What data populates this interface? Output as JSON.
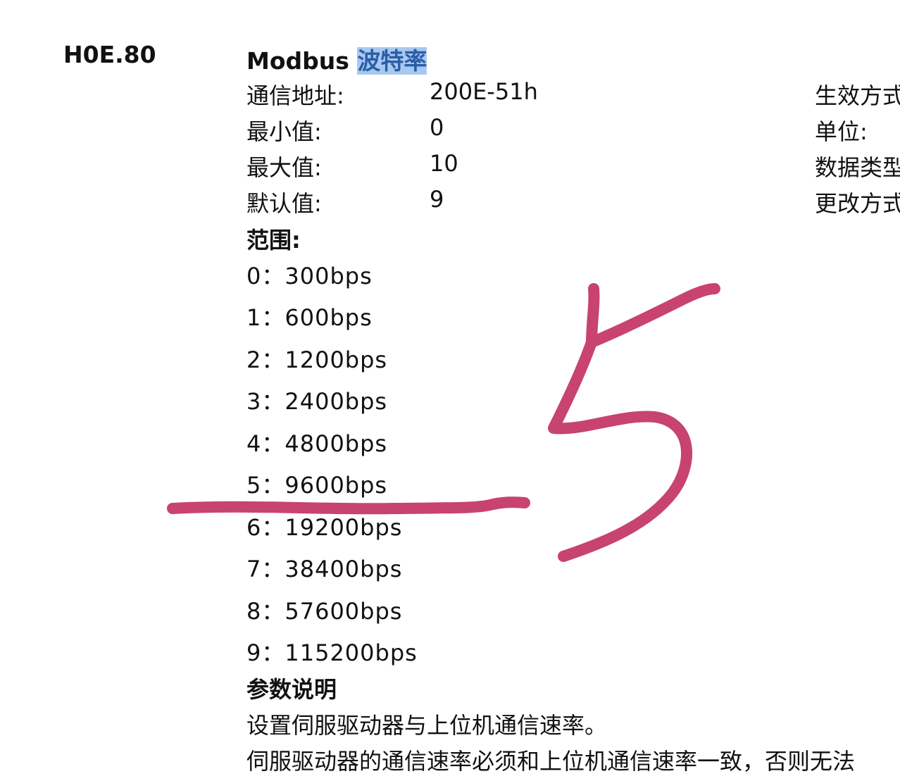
{
  "param": {
    "code": "H0E.80",
    "title_prefix": "Modbus ",
    "title_highlight": "波特率",
    "fields": [
      {
        "label": "通信地址:",
        "value": "200E-51h"
      },
      {
        "label": "最小值:",
        "value": "0"
      },
      {
        "label": "最大值:",
        "value": "10"
      },
      {
        "label": "默认值:",
        "value": "9"
      }
    ],
    "right_fields": [
      "生效方式",
      "单位:",
      "数据类型",
      "更改方式"
    ],
    "range_heading": "范围:",
    "range_options": [
      "0：300bps",
      "1：600bps",
      "2：1200bps",
      "3：2400bps",
      "4：4800bps",
      "5：9600bps",
      "6：19200bps",
      "7：38400bps",
      "8：57600bps",
      "9：115200bps"
    ],
    "desc_heading": "参数说明",
    "desc_lines": [
      "设置伺服驱动器与上位机通信速率。",
      "伺服驱动器的通信速率必须和上位机通信速率一致，否则无法"
    ]
  },
  "annotation": {
    "handwritten_text": "5",
    "color": "#c8436f"
  }
}
